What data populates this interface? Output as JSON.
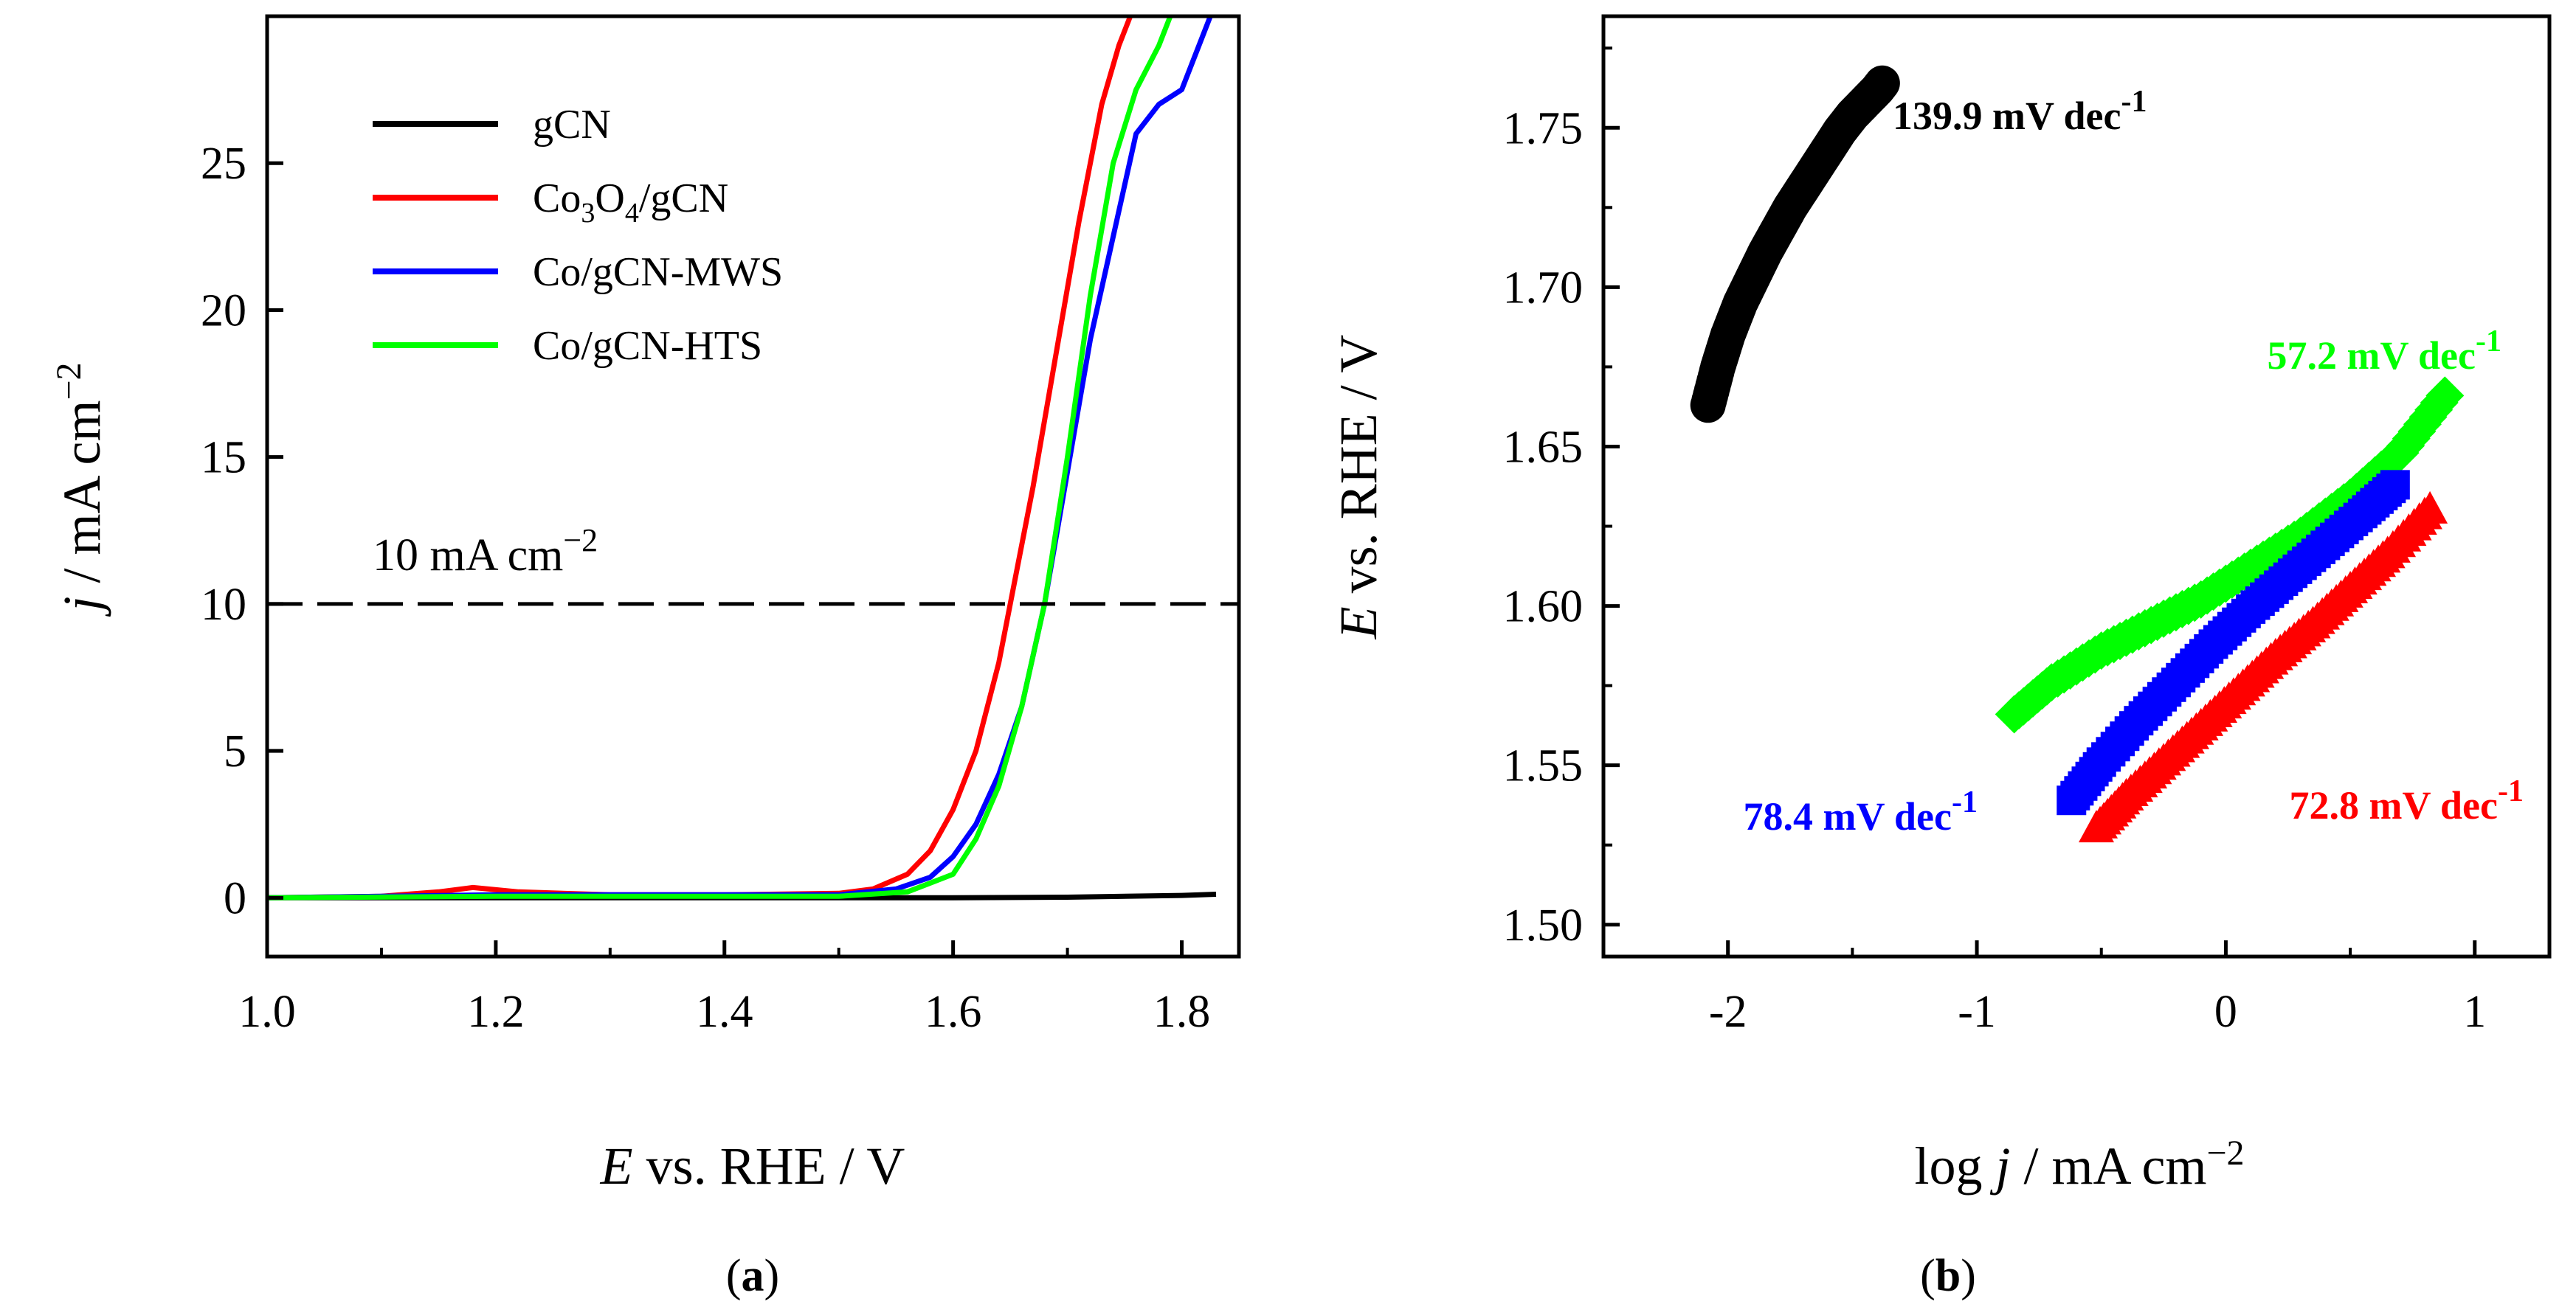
{
  "chart_data": [
    {
      "panel": "(a)",
      "type": "line",
      "xlabel": "E vs. RHE / V",
      "ylabel": "j / mA cm−2",
      "xlim": [
        1.0,
        1.85
      ],
      "ylim": [
        -2,
        30
      ],
      "xticks": [
        1.0,
        1.2,
        1.4,
        1.6,
        1.8
      ],
      "yticks": [
        0,
        5,
        10,
        15,
        20,
        25
      ],
      "xtick_labels": [
        "1.0",
        "1.2",
        "1.4",
        "1.6",
        "1.8"
      ],
      "ytick_labels": [
        "0",
        "5",
        "10",
        "15",
        "20",
        "25"
      ],
      "legend_position": "top-left",
      "reference_line": {
        "y": 10,
        "style": "dashed",
        "label": "10 mA cm",
        "label_sup": "−2"
      },
      "series": [
        {
          "name": "gCN",
          "color": "#000000",
          "x": [
            1.0,
            1.2,
            1.4,
            1.6,
            1.7,
            1.8,
            1.83
          ],
          "y": [
            0,
            0,
            0,
            0,
            0.02,
            0.08,
            0.12
          ]
        },
        {
          "name": "Co3O4/gCN",
          "color": "#ff0000",
          "x": [
            1.0,
            1.1,
            1.15,
            1.18,
            1.22,
            1.3,
            1.4,
            1.5,
            1.53,
            1.56,
            1.58,
            1.6,
            1.62,
            1.64,
            1.65,
            1.67,
            1.69,
            1.71,
            1.73,
            1.745,
            1.755
          ],
          "y": [
            0,
            0.05,
            0.2,
            0.35,
            0.2,
            0.1,
            0.1,
            0.15,
            0.3,
            0.8,
            1.6,
            3.0,
            5.0,
            8.0,
            10.0,
            14.0,
            18.5,
            23.0,
            27.0,
            29.0,
            30.0
          ]
        },
        {
          "name": "Co/gCN-MWS",
          "color": "#0000ff",
          "x": [
            1.0,
            1.2,
            1.4,
            1.5,
            1.55,
            1.58,
            1.6,
            1.62,
            1.64,
            1.66,
            1.68,
            1.7,
            1.72,
            1.74,
            1.76,
            1.78,
            1.8,
            1.815,
            1.825
          ],
          "y": [
            0,
            0.1,
            0.1,
            0.1,
            0.3,
            0.7,
            1.4,
            2.5,
            4.2,
            6.5,
            10.0,
            14.5,
            19.0,
            22.5,
            26.0,
            27.0,
            27.5,
            29.0,
            30.0
          ]
        },
        {
          "name": "Co/gCN-HTS",
          "color": "#00ff00",
          "x": [
            1.0,
            1.2,
            1.4,
            1.5,
            1.56,
            1.6,
            1.62,
            1.64,
            1.66,
            1.68,
            1.7,
            1.72,
            1.74,
            1.76,
            1.78,
            1.79
          ],
          "y": [
            0,
            0.05,
            0.05,
            0.05,
            0.2,
            0.8,
            2.0,
            3.8,
            6.5,
            10.0,
            15.0,
            20.5,
            25.0,
            27.5,
            29.0,
            30.0
          ]
        }
      ]
    },
    {
      "panel": "(b)",
      "type": "scatter",
      "xlabel": "log j / mA cm−2",
      "ylabel": "E vs. RHE / V",
      "xlim": [
        -2.5,
        1.3
      ],
      "ylim": [
        1.49,
        1.785
      ],
      "xticks": [
        -2,
        -1,
        0,
        1
      ],
      "yticks": [
        1.5,
        1.55,
        1.6,
        1.65,
        1.7,
        1.75
      ],
      "xtick_labels": [
        "-2",
        "-1",
        "0",
        "1"
      ],
      "ytick_labels": [
        "1.50",
        "1.55",
        "1.60",
        "1.65",
        "1.70",
        "1.75"
      ],
      "series": [
        {
          "name": "gCN",
          "color": "#000000",
          "marker": "circle",
          "slope_label": "139.9 mV dec",
          "slope_sup": "-1",
          "label_position": "top-right of series",
          "x": [
            -2.08,
            -2.04,
            -2.0,
            -1.95,
            -1.9,
            -1.85,
            -1.8,
            -1.75,
            -1.7,
            -1.65,
            -1.6,
            -1.55,
            -1.5,
            -1.45,
            -1.4,
            -1.38
          ],
          "y": [
            1.663,
            1.675,
            1.685,
            1.695,
            1.703,
            1.711,
            1.718,
            1.725,
            1.731,
            1.737,
            1.743,
            1.749,
            1.754,
            1.758,
            1.762,
            1.764
          ]
        },
        {
          "name": "Co/gCN-HTS",
          "color": "#00ff00",
          "marker": "diamond",
          "slope_label": "57.2 mV dec",
          "slope_sup": "-1",
          "label_position": "above series end",
          "x": [
            -0.85,
            -0.7,
            -0.5,
            -0.3,
            -0.1,
            0.1,
            0.3,
            0.5,
            0.7,
            0.88
          ],
          "y": [
            1.566,
            1.576,
            1.586,
            1.594,
            1.602,
            1.612,
            1.622,
            1.634,
            1.648,
            1.666
          ]
        },
        {
          "name": "Co/gCN-MWS",
          "color": "#0000ff",
          "marker": "square",
          "slope_label": "78.4 mV dec",
          "slope_sup": "-1",
          "label_position": "left of series start",
          "x": [
            -0.62,
            -0.5,
            -0.35,
            -0.2,
            -0.05,
            0.1,
            0.25,
            0.4,
            0.55,
            0.68
          ],
          "y": [
            1.539,
            1.551,
            1.564,
            1.576,
            1.588,
            1.599,
            1.609,
            1.619,
            1.629,
            1.638
          ]
        },
        {
          "name": "Co3O4/gCN",
          "color": "#ff0000",
          "marker": "triangle",
          "slope_label": "72.8 mV dec",
          "slope_sup": "-1",
          "label_position": "below right",
          "x": [
            -0.52,
            -0.4,
            -0.25,
            -0.1,
            0.05,
            0.2,
            0.35,
            0.5,
            0.65,
            0.82
          ],
          "y": [
            1.53,
            1.54,
            1.551,
            1.562,
            1.573,
            1.584,
            1.594,
            1.605,
            1.616,
            1.63
          ]
        }
      ]
    }
  ],
  "panel_a": {
    "legend": [
      {
        "parts": [
          {
            "t": "gCN"
          }
        ]
      },
      {
        "parts": [
          {
            "t": "Co"
          },
          {
            "t": "3",
            "sub": true
          },
          {
            "t": "O"
          },
          {
            "t": "4",
            "sub": true
          },
          {
            "t": "/gCN"
          }
        ]
      },
      {
        "parts": [
          {
            "t": "Co/gCN-MWS"
          }
        ]
      },
      {
        "parts": [
          {
            "t": "Co/gCN-HTS"
          }
        ]
      }
    ],
    "ylabel_parts": [
      {
        "t": "j",
        "italic": true
      },
      {
        "t": " / mA cm"
      },
      {
        "t": "−2",
        "sup": true
      }
    ],
    "xlabel_parts": [
      {
        "t": "E",
        "italic": true
      },
      {
        "t": " vs. RHE / V"
      }
    ],
    "caption": [
      {
        "t": "("
      },
      {
        "t": "a",
        "bold": true
      },
      {
        "t": ")"
      }
    ]
  },
  "panel_b": {
    "ylabel_parts": [
      {
        "t": "E",
        "italic": true
      },
      {
        "t": " vs. RHE / V"
      }
    ],
    "xlabel_parts": [
      {
        "t": "log "
      },
      {
        "t": "j",
        "italic": true
      },
      {
        "t": " / mA cm"
      },
      {
        "t": "−2",
        "sup": true
      }
    ],
    "caption": [
      {
        "t": "("
      },
      {
        "t": "b",
        "bold": true
      },
      {
        "t": ")"
      }
    ]
  }
}
